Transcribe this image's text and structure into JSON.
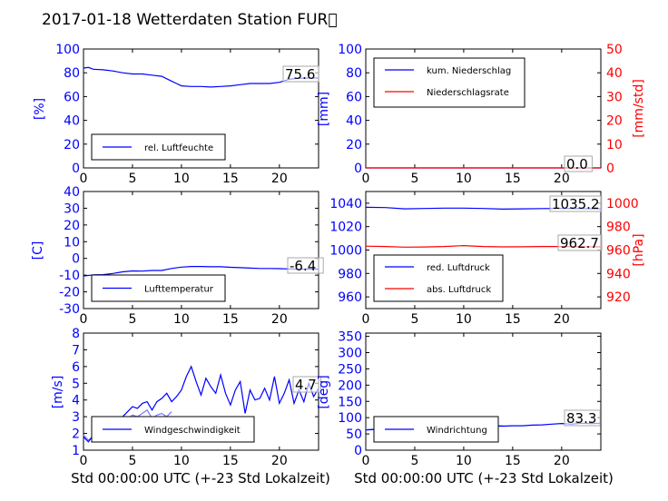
{
  "title": "2017-01-18 Wetterdaten Station FUR\u0000",
  "colors": {
    "left_axis": "#0000ff",
    "right_axis": "#ff0000",
    "wind_light": "#7777ff",
    "text": "#000000"
  },
  "chart_data": [
    {
      "id": "humidity",
      "type": "line",
      "x_range": [
        0,
        24
      ],
      "x_ticks": [
        0,
        5,
        10,
        15,
        20
      ],
      "y_range": [
        0,
        100
      ],
      "y_ticks": [
        0,
        20,
        40,
        60,
        80,
        100
      ],
      "ylabel": "[%]",
      "legend": [
        "rel. Luftfeuchte"
      ],
      "annotation": "75.6",
      "series": [
        {
          "name": "rel. Luftfeuchte",
          "color": "#0000ff",
          "x": [
            0,
            0.5,
            1,
            2,
            3,
            4,
            5,
            6,
            7,
            8,
            8.5,
            9,
            9.5,
            10,
            11,
            12,
            13,
            14,
            15,
            16,
            17,
            18,
            19,
            20,
            21,
            22,
            23,
            24
          ],
          "y": [
            84,
            84.5,
            83,
            82.5,
            81.5,
            80,
            79,
            79,
            78,
            77,
            75,
            73,
            71,
            69,
            68.5,
            68.5,
            68,
            68.5,
            69,
            70,
            71,
            71,
            71,
            72,
            74.5,
            75.5,
            75.6,
            75.6
          ]
        }
      ]
    },
    {
      "id": "precipitation",
      "type": "line",
      "x_range": [
        0,
        24
      ],
      "x_ticks": [
        0,
        5,
        10,
        15,
        20
      ],
      "y_range": [
        0,
        100
      ],
      "y_ticks": [
        0,
        20,
        40,
        60,
        80,
        100
      ],
      "ylabel": "[mm]",
      "y2_range": [
        0,
        50
      ],
      "y2_ticks": [
        0,
        10,
        20,
        30,
        40,
        50
      ],
      "y2label": "[mm/std]",
      "legend": [
        "kum. Niederschlag",
        "Niederschlagsrate"
      ],
      "annotation": "0.0",
      "series": [
        {
          "name": "kum. Niederschlag",
          "color": "#0000ff",
          "axis": "left",
          "x": [
            0,
            24
          ],
          "y": [
            0,
            0
          ]
        },
        {
          "name": "Niederschlagsrate",
          "color": "#ff0000",
          "axis": "right",
          "x": [
            0,
            24
          ],
          "y": [
            0,
            0
          ]
        }
      ]
    },
    {
      "id": "temperature",
      "type": "line",
      "x_range": [
        0,
        24
      ],
      "x_ticks": [
        0,
        5,
        10,
        15,
        20
      ],
      "y_range": [
        -30,
        40
      ],
      "y_ticks": [
        -30,
        -20,
        -10,
        0,
        10,
        20,
        30,
        40
      ],
      "ylabel": "[C]",
      "legend": [
        "Lufttemperatur"
      ],
      "annotation": "-6.4",
      "series": [
        {
          "name": "Lufttemperatur",
          "color": "#0000ff",
          "x": [
            0,
            1,
            2,
            3,
            4,
            5,
            6,
            7,
            8,
            9,
            10,
            11,
            12,
            13,
            14,
            15,
            16,
            17,
            18,
            19,
            20,
            21,
            22,
            23,
            24
          ],
          "y": [
            -10.5,
            -9.8,
            -9.7,
            -9,
            -8,
            -7.5,
            -7.6,
            -7.2,
            -7.2,
            -6,
            -5.2,
            -4.8,
            -4.8,
            -5,
            -5,
            -5.3,
            -5.5,
            -5.8,
            -6,
            -6,
            -6.1,
            -6.3,
            -6.4,
            -6.4,
            -6.4
          ]
        }
      ]
    },
    {
      "id": "pressure",
      "type": "line",
      "x_range": [
        0,
        24
      ],
      "x_ticks": [
        0,
        5,
        10,
        15,
        20
      ],
      "y_range": [
        950,
        1050
      ],
      "y_ticks": [
        960,
        980,
        1000,
        1020,
        1040
      ],
      "ylabel": "",
      "y2_range": [
        910,
        1010
      ],
      "y2_ticks": [
        920,
        940,
        960,
        980,
        1000
      ],
      "y2label": "[hPa]",
      "legend": [
        "red. Luftdruck",
        "abs. Luftdruck"
      ],
      "annotations": [
        "1035.2",
        "962.7"
      ],
      "series": [
        {
          "name": "red. Luftdruck",
          "color": "#0000ff",
          "axis": "left",
          "x": [
            0,
            2,
            4,
            6,
            8,
            10,
            12,
            14,
            16,
            18,
            20,
            22,
            24
          ],
          "y": [
            1036.5,
            1036.3,
            1035.2,
            1035.5,
            1035.8,
            1035.8,
            1035.5,
            1035,
            1035.2,
            1035.4,
            1035.6,
            1035.4,
            1035.2
          ]
        },
        {
          "name": "abs. Luftdruck",
          "color": "#ff0000",
          "axis": "right",
          "x": [
            0,
            2,
            4,
            6,
            8,
            10,
            12,
            14,
            16,
            18,
            20,
            22,
            24
          ],
          "y": [
            963.3,
            963,
            962.5,
            962.6,
            963,
            963.8,
            963,
            962.7,
            962.8,
            963,
            963,
            962.8,
            962.7
          ]
        }
      ]
    },
    {
      "id": "wind_speed",
      "type": "line",
      "x_range": [
        0,
        24
      ],
      "x_ticks": [
        0,
        5,
        10,
        15,
        20
      ],
      "y_range": [
        1,
        8
      ],
      "y_ticks": [
        1,
        2,
        3,
        4,
        5,
        6,
        7,
        8
      ],
      "ylabel": "[m/s]",
      "legend": [
        "Windgeschwindigkeit"
      ],
      "annotation": "4.7",
      "series": [
        {
          "name": "Windgeschwindigkeit",
          "color": "#0000ff",
          "x": [
            0,
            0.5,
            1,
            1.5,
            2,
            2.5,
            3,
            3.5,
            4,
            4.5,
            5,
            5.5,
            6,
            6.5,
            7,
            7.5,
            8,
            8.5,
            9,
            9.5,
            10,
            10.5,
            11,
            11.5,
            12,
            12.5,
            13,
            13.5,
            14,
            14.5,
            15,
            15.5,
            16,
            16.5,
            17,
            17.5,
            18,
            18.5,
            19,
            19.5,
            20,
            20.5,
            21,
            21.5,
            22,
            22.5,
            23,
            23.5,
            24
          ],
          "y": [
            1.8,
            1.5,
            1.9,
            2.2,
            2.4,
            2.6,
            2.5,
            2.9,
            3.0,
            3.3,
            3.6,
            3.5,
            3.8,
            3.9,
            3.4,
            3.9,
            4.1,
            4.4,
            3.9,
            4.2,
            4.6,
            5.4,
            6.0,
            5.1,
            4.3,
            5.3,
            4.8,
            4.4,
            5.5,
            4.4,
            3.7,
            4.6,
            5.1,
            3.2,
            4.6,
            4.0,
            4.1,
            4.7,
            4.0,
            5.4,
            3.8,
            4.4,
            5.2,
            3.8,
            4.6,
            3.9,
            5.0,
            4.2,
            4.7
          ]
        },
        {
          "name": "",
          "color": "#7777ff",
          "x": [
            0,
            0.5,
            1,
            1.5,
            2,
            2.5,
            3,
            3.5,
            4,
            4.5,
            5,
            5.5,
            6,
            6.5,
            7,
            7.5,
            8,
            8.5,
            9
          ],
          "y": [
            1.9,
            1.6,
            1.8,
            2.1,
            2.3,
            2.5,
            2.4,
            2.8,
            2.7,
            2.9,
            3.1,
            3.0,
            3.2,
            3.4,
            2.9,
            3.1,
            3.2,
            3.0,
            3.3
          ]
        }
      ]
    },
    {
      "id": "wind_direction",
      "type": "line",
      "x_range": [
        0,
        24
      ],
      "x_ticks": [
        0,
        5,
        10,
        15,
        20
      ],
      "y_range": [
        0,
        360
      ],
      "y_ticks": [
        0,
        50,
        100,
        150,
        200,
        250,
        300,
        350
      ],
      "ylabel": "[deg]",
      "legend": [
        "Windrichtung"
      ],
      "annotation": "83.3",
      "series": [
        {
          "name": "Windrichtung",
          "color": "#0000ff",
          "x": [
            0,
            1,
            2,
            3,
            4,
            5,
            6,
            7,
            8,
            9,
            10,
            11,
            12,
            13,
            14,
            15,
            16,
            17,
            18,
            19,
            20,
            21,
            22,
            23,
            24
          ],
          "y": [
            62,
            64,
            63,
            66,
            68,
            66,
            64,
            67,
            66,
            70,
            70,
            72,
            71,
            74,
            74,
            75,
            75,
            77,
            78,
            80,
            82,
            80,
            83,
            82,
            83
          ]
        },
        {
          "name": "",
          "color": "#7777ff",
          "x": [
            0,
            1,
            2,
            3,
            4,
            5,
            6,
            7,
            8,
            9,
            10,
            11,
            12,
            13,
            14
          ],
          "y": [
            63,
            65,
            64,
            67,
            69,
            67,
            65,
            68,
            67,
            71,
            71,
            73,
            72,
            75,
            75
          ]
        }
      ]
    }
  ],
  "x_axis_label": "Std 00:00:00 UTC (+-23 Std Lokalzeit)"
}
